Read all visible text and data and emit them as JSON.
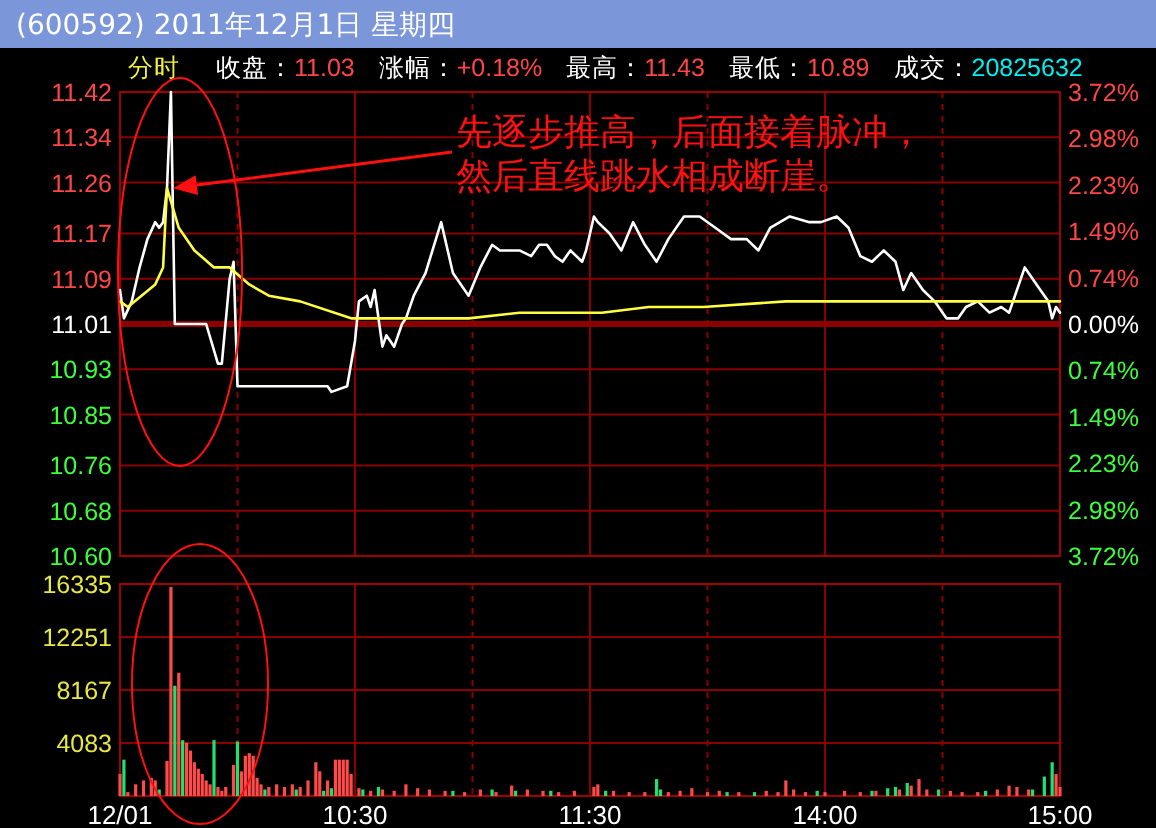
{
  "chart_data": [
    {
      "type": "line",
      "title": "(600592)  2011年12月1日  星期四",
      "subtitle": "分时",
      "annotations": [
        "收盘：11.03",
        "涨幅：+0.18%",
        "最高：11.43",
        "最低：10.89",
        "成交：20825632",
        "先逐步推高，后面接着脉冲，然后直线跳水相成断崖。"
      ],
      "categories": [
        null,
        null,
        null,
        null,
        null,
        null,
        null,
        null,
        null,
        null,
        null,
        null,
        null,
        null,
        null,
        null,
        null,
        null,
        null,
        null,
        null,
        null,
        null,
        null,
        null,
        null,
        null,
        null,
        null,
        null,
        null,
        null,
        null,
        null,
        null,
        null,
        null,
        null,
        null,
        null,
        null,
        null,
        null,
        null,
        null,
        null,
        null,
        null,
        null,
        null,
        null,
        null,
        null,
        null,
        null,
        null,
        null,
        null,
        null,
        null,
        null,
        null,
        null,
        null,
        null,
        null,
        null,
        null,
        null,
        null,
        null,
        null,
        null,
        null,
        null,
        null,
        null,
        null,
        null,
        null,
        null,
        null,
        null,
        null,
        null,
        null,
        null,
        null,
        null,
        null,
        null,
        null,
        null,
        null,
        null,
        null,
        null,
        null,
        null,
        null,
        null,
        null,
        null,
        null,
        null,
        null,
        null,
        null,
        null,
        null,
        null,
        null,
        null,
        null,
        null,
        null,
        null,
        null,
        null,
        null,
        null,
        null,
        null,
        null,
        null,
        null,
        null,
        null,
        null,
        null,
        null,
        null,
        null,
        null,
        null,
        null,
        null,
        null,
        null,
        null,
        null,
        null,
        null,
        null,
        null,
        null,
        null,
        null,
        null,
        null,
        null,
        null,
        null,
        null,
        null,
        null,
        null,
        null,
        null,
        null,
        null,
        null,
        null,
        null,
        null,
        null,
        null,
        null,
        null,
        null,
        null,
        null,
        null,
        null,
        null,
        null,
        null,
        null,
        null,
        null,
        null,
        null,
        null,
        null,
        null,
        null,
        null,
        null,
        null,
        null,
        null,
        null,
        null,
        null,
        null,
        null,
        null,
        null,
        null,
        null,
        null,
        null,
        null,
        null,
        null,
        null,
        null,
        null,
        null,
        null,
        null,
        null,
        null,
        null,
        null,
        null,
        null,
        null,
        null,
        null,
        null,
        null,
        null,
        null,
        null,
        null,
        null,
        null,
        null,
        null,
        null,
        null,
        null,
        null,
        null,
        null,
        null,
        null,
        null,
        null,
        null
      ],
      "series": [
        {
          "color": "#ffffff",
          "values": [
            11.07,
            11.02,
            null,
            11.05,
            null,
            11.11,
            null,
            11.16,
            null,
            11.19,
            11.18,
            11.19,
            11.25,
            11.42,
            11.01,
            null,
            null,
            null,
            null,
            null,
            null,
            null,
            11.01,
            null,
            null,
            10.94,
            10.94,
            null,
            11.09,
            11.12,
            10.9,
            null,
            null,
            null,
            null,
            null,
            null,
            null,
            null,
            null,
            null,
            null,
            null,
            null,
            null,
            null,
            null,
            null,
            null,
            null,
            null,
            null,
            null,
            10.9,
            10.89,
            null,
            null,
            null,
            10.9,
            null,
            10.98,
            11.05,
            null,
            11.06,
            11.04,
            11.07,
            null,
            10.97,
            10.99,
            null,
            10.97,
            null,
            11.01,
            11.02,
            null,
            11.06,
            null,
            null,
            11.1,
            null,
            null,
            null,
            11.19,
            null,
            null,
            11.1,
            null,
            null,
            null,
            11.06,
            null,
            null,
            11.11,
            null,
            null,
            11.15,
            null,
            11.14,
            null,
            null,
            null,
            null,
            11.14,
            null,
            null,
            11.13,
            null,
            11.15,
            null,
            11.15,
            null,
            11.13,
            null,
            11.12,
            null,
            11.14,
            null,
            null,
            11.12,
            11.14,
            null,
            11.2,
            11.19,
            null,
            null,
            11.17,
            null,
            null,
            11.14,
            null,
            null,
            11.19,
            null,
            null,
            11.15,
            null,
            null,
            11.12,
            null,
            null,
            11.16,
            null,
            null,
            null,
            11.2,
            null,
            null,
            null,
            11.2,
            null,
            null,
            null,
            11.18,
            null,
            null,
            null,
            11.16,
            null,
            null,
            null,
            11.16,
            null,
            null,
            11.14,
            null,
            null,
            11.18,
            null,
            null,
            null,
            null,
            11.2,
            null,
            null,
            null,
            null,
            11.19,
            null,
            null,
            11.19,
            null,
            null,
            null,
            11.2,
            null,
            null,
            11.18,
            null,
            null,
            11.13,
            null,
            null,
            11.12,
            null,
            null,
            11.14,
            null,
            null,
            11.12,
            null,
            11.07,
            null,
            11.1,
            null,
            null,
            11.07,
            null,
            null,
            11.05,
            null,
            null,
            11.02,
            null,
            null,
            11.02,
            null,
            11.04,
            null,
            null,
            11.05,
            null,
            null,
            11.03,
            null,
            null,
            11.04,
            null,
            11.03,
            11.05,
            null,
            null,
            11.11,
            null,
            null,
            11.08,
            null,
            null,
            11.05,
            11.02,
            11.04,
            11.03
          ]
        },
        {
          "color": "#ffff40",
          "values": [
            11.05,
            null,
            11.04,
            null,
            null,
            null,
            null,
            null,
            null,
            11.08,
            null,
            11.11,
            11.25,
            null,
            null,
            11.18,
            null,
            null,
            null,
            11.14,
            null,
            null,
            null,
            null,
            11.11,
            null,
            null,
            null,
            11.11,
            null,
            null,
            null,
            null,
            11.08,
            null,
            null,
            null,
            null,
            11.06,
            null,
            null,
            null,
            null,
            null,
            null,
            null,
            11.05,
            null,
            null,
            null,
            null,
            null,
            null,
            null,
            null,
            null,
            null,
            null,
            null,
            11.02,
            null,
            null,
            null,
            null,
            null,
            null,
            null,
            null,
            null,
            null,
            null,
            null,
            null,
            null,
            null,
            null,
            null,
            null,
            null,
            null,
            null,
            null,
            null,
            null,
            null,
            null,
            null,
            null,
            null,
            11.02,
            null,
            null,
            null,
            null,
            null,
            null,
            null,
            null,
            null,
            null,
            null,
            null,
            11.03,
            null,
            null,
            null,
            null,
            null,
            null,
            null,
            null,
            null,
            null,
            null,
            null,
            null,
            null,
            null,
            null,
            null,
            null,
            null,
            null,
            11.03,
            null,
            null,
            null,
            null,
            null,
            null,
            null,
            null,
            null,
            null,
            null,
            11.04,
            null,
            null,
            null,
            null,
            null,
            null,
            null,
            null,
            null,
            null,
            null,
            null,
            null,
            11.04,
            null,
            null,
            null,
            null,
            null,
            null,
            null,
            null,
            null,
            null,
            null,
            null,
            null,
            null,
            null,
            null,
            null,
            null,
            null,
            null,
            11.05,
            null,
            null,
            null,
            null,
            null,
            null,
            null,
            null,
            null,
            null,
            null,
            null,
            null,
            null,
            null,
            11.05,
            null,
            null,
            null,
            null,
            null,
            null,
            null,
            null,
            null,
            null,
            null,
            null,
            null,
            null,
            null,
            null,
            null,
            null,
            null,
            null,
            null,
            null,
            null,
            null,
            null,
            null,
            null,
            null,
            null,
            null,
            null,
            null,
            null,
            null,
            null,
            null,
            null,
            null,
            null,
            null,
            null,
            null,
            null,
            null,
            null,
            null,
            null,
            null,
            null,
            null,
            null,
            null,
            null,
            11.05
          ]
        }
      ],
      "ylim": [
        10.6,
        11.42
      ],
      "yticks": [
        11.42,
        11.34,
        11.26,
        11.17,
        11.09,
        11.01,
        10.93,
        10.85,
        10.76,
        10.68,
        {
          "value": 10.6,
          "label": "10.60"
        }
      ],
      "y2lim": [
        -3.72,
        3.72
      ],
      "y2ticks": [
        {
          "value": 3.72,
          "label": "3.72%"
        },
        {
          "value": 2.98,
          "label": "2.98%"
        },
        {
          "value": 2.23,
          "label": "2.23%"
        },
        {
          "value": 1.49,
          "label": "1.49%"
        },
        {
          "value": 0.74,
          "label": "0.74%"
        },
        {
          "value": 0,
          "label": "0.00%"
        },
        {
          "value": -0.74,
          "label": "0.74%"
        },
        {
          "value": -1.49,
          "label": "1.49%"
        },
        {
          "value": -2.23,
          "label": "2.23%"
        },
        {
          "value": -2.98,
          "label": "2.98%"
        },
        {
          "value": -3.72,
          "label": "3.72%"
        }
      ],
      "ref_lines": [
        {
          "axis": "y",
          "value": 11.01,
          "color": "#8c0000"
        }
      ],
      "grid": true,
      "tick_labels": "y"
    },
    {
      "type": "bar",
      "categories": [
        "12/01",
        null,
        null,
        null,
        null,
        null,
        null,
        null,
        null,
        null,
        null,
        null,
        null,
        null,
        null,
        null,
        null,
        null,
        null,
        null,
        null,
        null,
        null,
        null,
        null,
        null,
        null,
        null,
        null,
        null,
        null,
        null,
        null,
        null,
        null,
        null,
        null,
        null,
        null,
        null,
        null,
        null,
        null,
        null,
        null,
        null,
        null,
        null,
        null,
        null,
        null,
        null,
        null,
        null,
        null,
        null,
        null,
        null,
        null,
        null,
        "10:30",
        null,
        null,
        null,
        null,
        null,
        null,
        null,
        null,
        null,
        null,
        null,
        null,
        null,
        null,
        null,
        null,
        null,
        null,
        null,
        null,
        null,
        null,
        null,
        null,
        null,
        null,
        null,
        null,
        null,
        null,
        null,
        null,
        null,
        null,
        null,
        null,
        null,
        null,
        null,
        null,
        null,
        null,
        null,
        null,
        null,
        null,
        null,
        null,
        null,
        null,
        null,
        null,
        null,
        null,
        null,
        null,
        null,
        null,
        null,
        "11:30",
        null,
        null,
        null,
        null,
        null,
        null,
        null,
        null,
        null,
        null,
        null,
        null,
        null,
        null,
        null,
        null,
        null,
        null,
        null,
        null,
        null,
        null,
        null,
        null,
        null,
        null,
        null,
        null,
        null,
        null,
        null,
        null,
        null,
        null,
        null,
        null,
        null,
        null,
        null,
        null,
        null,
        null,
        null,
        null,
        null,
        null,
        null,
        null,
        null,
        null,
        null,
        null,
        null,
        null,
        null,
        null,
        null,
        null,
        null,
        "14:00",
        null,
        null,
        null,
        null,
        null,
        null,
        null,
        null,
        null,
        null,
        null,
        null,
        null,
        null,
        null,
        null,
        null,
        null,
        null,
        null,
        null,
        null,
        null,
        null,
        null,
        null,
        null,
        null,
        null,
        null,
        null,
        null,
        null,
        null,
        null,
        null,
        null,
        null,
        null,
        null,
        null,
        null,
        null,
        null,
        null,
        null,
        null,
        null,
        null,
        null,
        null,
        null,
        null,
        null,
        null,
        null,
        null,
        null,
        null,
        "15:00"
      ],
      "series": [
        {
          "color": "#ff4a4a",
          "values": [
            1700,
            null,
            300,
            null,
            900,
            null,
            1200,
            null,
            1400,
            1200,
            null,
            null,
            2700,
            16100,
            null,
            9500,
            null,
            4100,
            3500,
            2600,
            2100,
            1700,
            1200,
            900,
            null,
            700,
            400,
            700,
            null,
            2400,
            null,
            1900,
            3100,
            3300,
            3100,
            1400,
            900,
            null,
            700,
            null,
            900,
            null,
            700,
            null,
            900,
            null,
            700,
            null,
            1200,
            null,
            2600,
            1900,
            null,
            1200,
            null,
            2800,
            2800,
            2800,
            2800,
            1700,
            null,
            600,
            null,
            null,
            400,
            null,
            null,
            500,
            null,
            null,
            400,
            null,
            null,
            900,
            null,
            null,
            600,
            null,
            null,
            500,
            null,
            null,
            null,
            400,
            null,
            null,
            null,
            null,
            300,
            null,
            null,
            null,
            500,
            null,
            null,
            null,
            300,
            null,
            null,
            null,
            800,
            null,
            null,
            null,
            500,
            null,
            null,
            null,
            400,
            null,
            null,
            null,
            300,
            null,
            null,
            null,
            400,
            null,
            null,
            null,
            null,
            700,
            900,
            null,
            null,
            null,
            400,
            null,
            null,
            null,
            300,
            null,
            null,
            null,
            300,
            null,
            null,
            null,
            null,
            null,
            300,
            null,
            null,
            400,
            null,
            null,
            600,
            null,
            null,
            null,
            300,
            null,
            null,
            400,
            null,
            null,
            null,
            null,
            300,
            null,
            null,
            null,
            null,
            null,
            null,
            400,
            null,
            null,
            300,
            null,
            1200,
            null,
            500,
            null,
            null,
            300,
            null,
            null,
            null,
            null,
            300,
            null,
            null,
            null,
            null,
            400,
            null,
            null,
            null,
            300,
            null,
            null,
            null,
            400,
            null,
            null,
            null,
            null,
            null,
            500,
            null,
            null,
            800,
            null,
            1300,
            null,
            500,
            null,
            null,
            null,
            null,
            null,
            400,
            null,
            null,
            300,
            null,
            null,
            null,
            300,
            null,
            null,
            null,
            null,
            500,
            null,
            null,
            800,
            null,
            700,
            null,
            null,
            500,
            null,
            null,
            null,
            null,
            null,
            null,
            1700,
            700
          ]
        },
        {
          "color": "#20e070",
          "values": [
            null,
            2800,
            null,
            null,
            null,
            null,
            null,
            null,
            null,
            null,
            500,
            null,
            null,
            null,
            8500,
            null,
            4300,
            null,
            null,
            null,
            null,
            null,
            null,
            null,
            4300,
            null,
            null,
            null,
            null,
            null,
            4200,
            null,
            null,
            null,
            null,
            null,
            null,
            500,
            null,
            null,
            null,
            null,
            null,
            null,
            null,
            500,
            null,
            null,
            null,
            null,
            null,
            null,
            400,
            null,
            600,
            null,
            null,
            null,
            null,
            null,
            null,
            null,
            500,
            null,
            null,
            null,
            700,
            null,
            null,
            null,
            null,
            null,
            null,
            null,
            null,
            null,
            null,
            null,
            null,
            null,
            null,
            null,
            null,
            null,
            null,
            400,
            null,
            null,
            null,
            null,
            null,
            null,
            null,
            null,
            null,
            500,
            null,
            null,
            null,
            null,
            null,
            400,
            null,
            null,
            null,
            null,
            null,
            null,
            null,
            null,
            400,
            null,
            null,
            null,
            null,
            null,
            null,
            null,
            null,
            null,
            null,
            null,
            null,
            null,
            400,
            null,
            null,
            null,
            null,
            null,
            null,
            null,
            null,
            null,
            null,
            null,
            null,
            1300,
            500,
            null,
            null,
            null,
            null,
            null,
            null,
            null,
            null,
            null,
            null,
            null,
            null,
            null,
            null,
            null,
            null,
            300,
            null,
            null,
            null,
            null,
            null,
            null,
            300,
            null,
            null,
            null,
            null,
            null,
            null,
            null,
            null,
            null,
            null,
            null,
            null,
            null,
            null,
            null,
            400,
            null,
            null,
            null,
            null,
            null,
            null,
            null,
            null,
            null,
            null,
            null,
            null,
            null,
            400,
            null,
            null,
            null,
            600,
            null,
            700,
            null,
            null,
            1000,
            null,
            null,
            null,
            null,
            null,
            null,
            null,
            500,
            null,
            null,
            null,
            null,
            null,
            null,
            null,
            null,
            null,
            null,
            null,
            400,
            null,
            null,
            null,
            null,
            null,
            null,
            null,
            null,
            null,
            null,
            null,
            500,
            null,
            null,
            1500,
            null,
            2600,
            null,
            null
          ]
        }
      ],
      "ylim": [
        0,
        16335
      ],
      "yticks": [
        4083,
        8167,
        12251,
        16335
      ],
      "grid": true
    }
  ]
}
